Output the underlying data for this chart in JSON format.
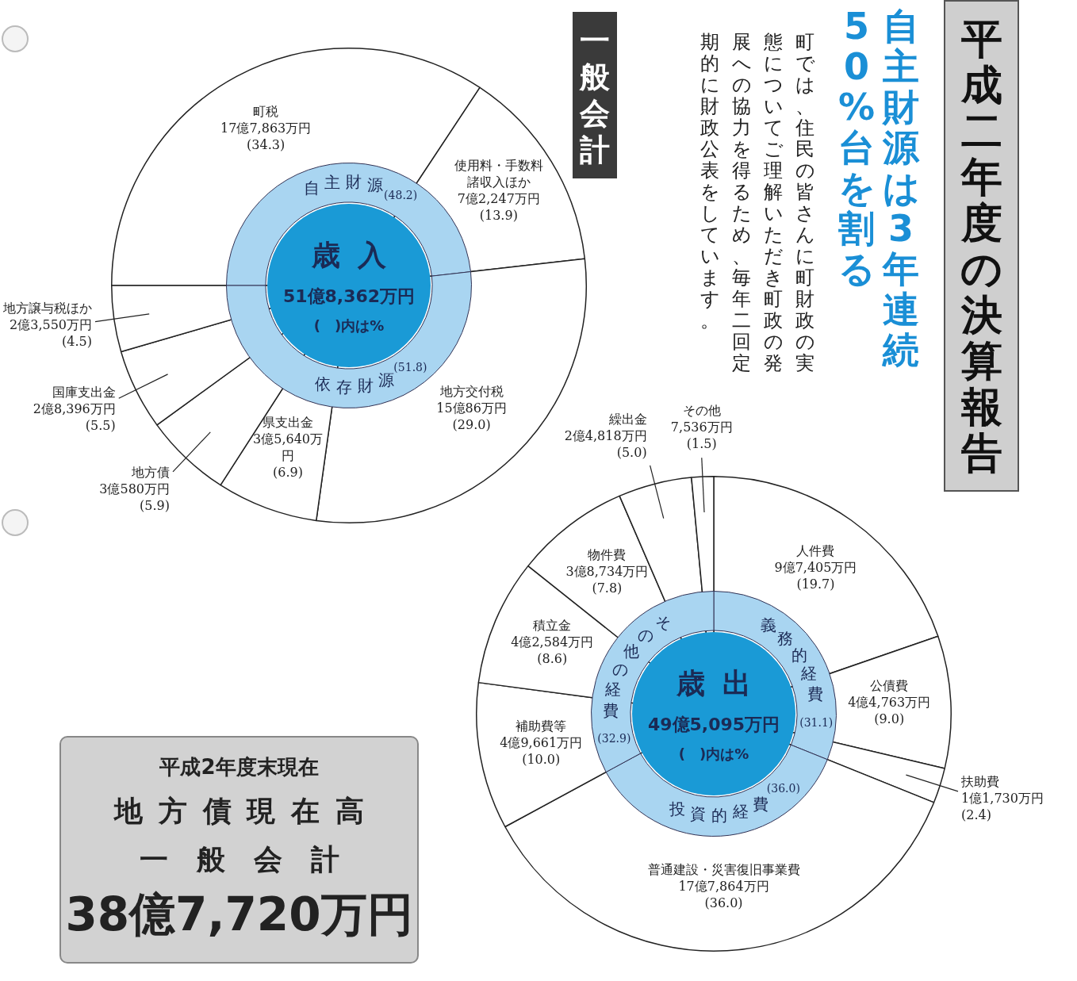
{
  "chart_data": [
    {
      "type": "other",
      "title": "平成二年度の決算報告",
      "subtitle": "自主財源は3年連続50%台を割る",
      "annotations": [
        "町では、住民の皆さんに町財政の実態についてご理解いただき町政の発展への協力を得るため、毎年二回定期的に財政公表をしています。"
      ]
    },
    {
      "type": "pie",
      "title": "一般会計",
      "categories": [
        "町税",
        "使用料・手数料諸収入ほか",
        "地方交付税",
        "県支出金",
        "地方債",
        "国庫支出金",
        "地方譲与税ほか"
      ],
      "values": [
        34.3,
        13.9,
        29.0,
        6.9,
        5.9,
        5.5,
        4.5
      ],
      "colors": [
        "#ffffff",
        "#ffffff",
        "#ffffff",
        "#ffffff",
        "#ffffff",
        "#ffffff",
        "#ffffff"
      ],
      "value_labels": [
        "17億7,863万円 (34.3)",
        "7億2,247万円 (13.9)",
        "15億86万円 (29.0)",
        "3億5,640万円 (6.9)",
        "3億580万円 (5.9)",
        "2億8,396万円 (5.5)",
        "2億3,550万円 (4.5)"
      ]
    },
    {
      "type": "donut",
      "title": "歳入",
      "subtitle": "51億8,362万円",
      "annotations": [
        "(　)内は%"
      ],
      "categories": [
        "自主財源",
        "依存財源"
      ],
      "values": [
        48.2,
        51.8
      ],
      "colors": [
        "#a9d5f1",
        "#a9d5f1"
      ],
      "value_labels": [
        "(48.2)",
        "(51.8)"
      ]
    },
    {
      "type": "pie",
      "categories": [
        "人件費",
        "公債費",
        "扶助費",
        "普通建設・災害復旧事業費",
        "補助費等",
        "積立金",
        "物件費",
        "繰出金",
        "その他"
      ],
      "values": [
        19.7,
        9.0,
        2.4,
        36.0,
        10.0,
        8.6,
        7.8,
        5.0,
        1.5
      ],
      "colors": [
        "#ffffff",
        "#ffffff",
        "#ffffff",
        "#ffffff",
        "#ffffff",
        "#ffffff",
        "#ffffff",
        "#ffffff",
        "#ffffff"
      ],
      "value_labels": [
        "9億7,405万円 (19.7)",
        "4億4,763万円 (9.0)",
        "1億1,730万円 (2.4)",
        "17億7,864万円 (36.0)",
        "4億9,661万円 (10.0)",
        "4億2,584万円 (8.6)",
        "3億8,734万円 (7.8)",
        "2億4,818万円 (5.0)",
        "7,536万円 (1.5)"
      ]
    },
    {
      "type": "donut",
      "title": "歳出",
      "subtitle": "49億5,095万円",
      "annotations": [
        "(　)内は%"
      ],
      "categories": [
        "義務的経費",
        "投資的経費",
        "その他の経費"
      ],
      "values": [
        31.1,
        36.0,
        32.9
      ],
      "colors": [
        "#a9d5f1",
        "#a9d5f1",
        "#a9d5f1"
      ],
      "value_labels": [
        "(31.1)",
        "(36.0)",
        "(32.9)"
      ]
    },
    {
      "type": "other",
      "title": "地方債現在高",
      "subtitle": "平成2年度末現在",
      "annotations": [
        "一般会計",
        "38億7,720万円"
      ]
    }
  ]
}
